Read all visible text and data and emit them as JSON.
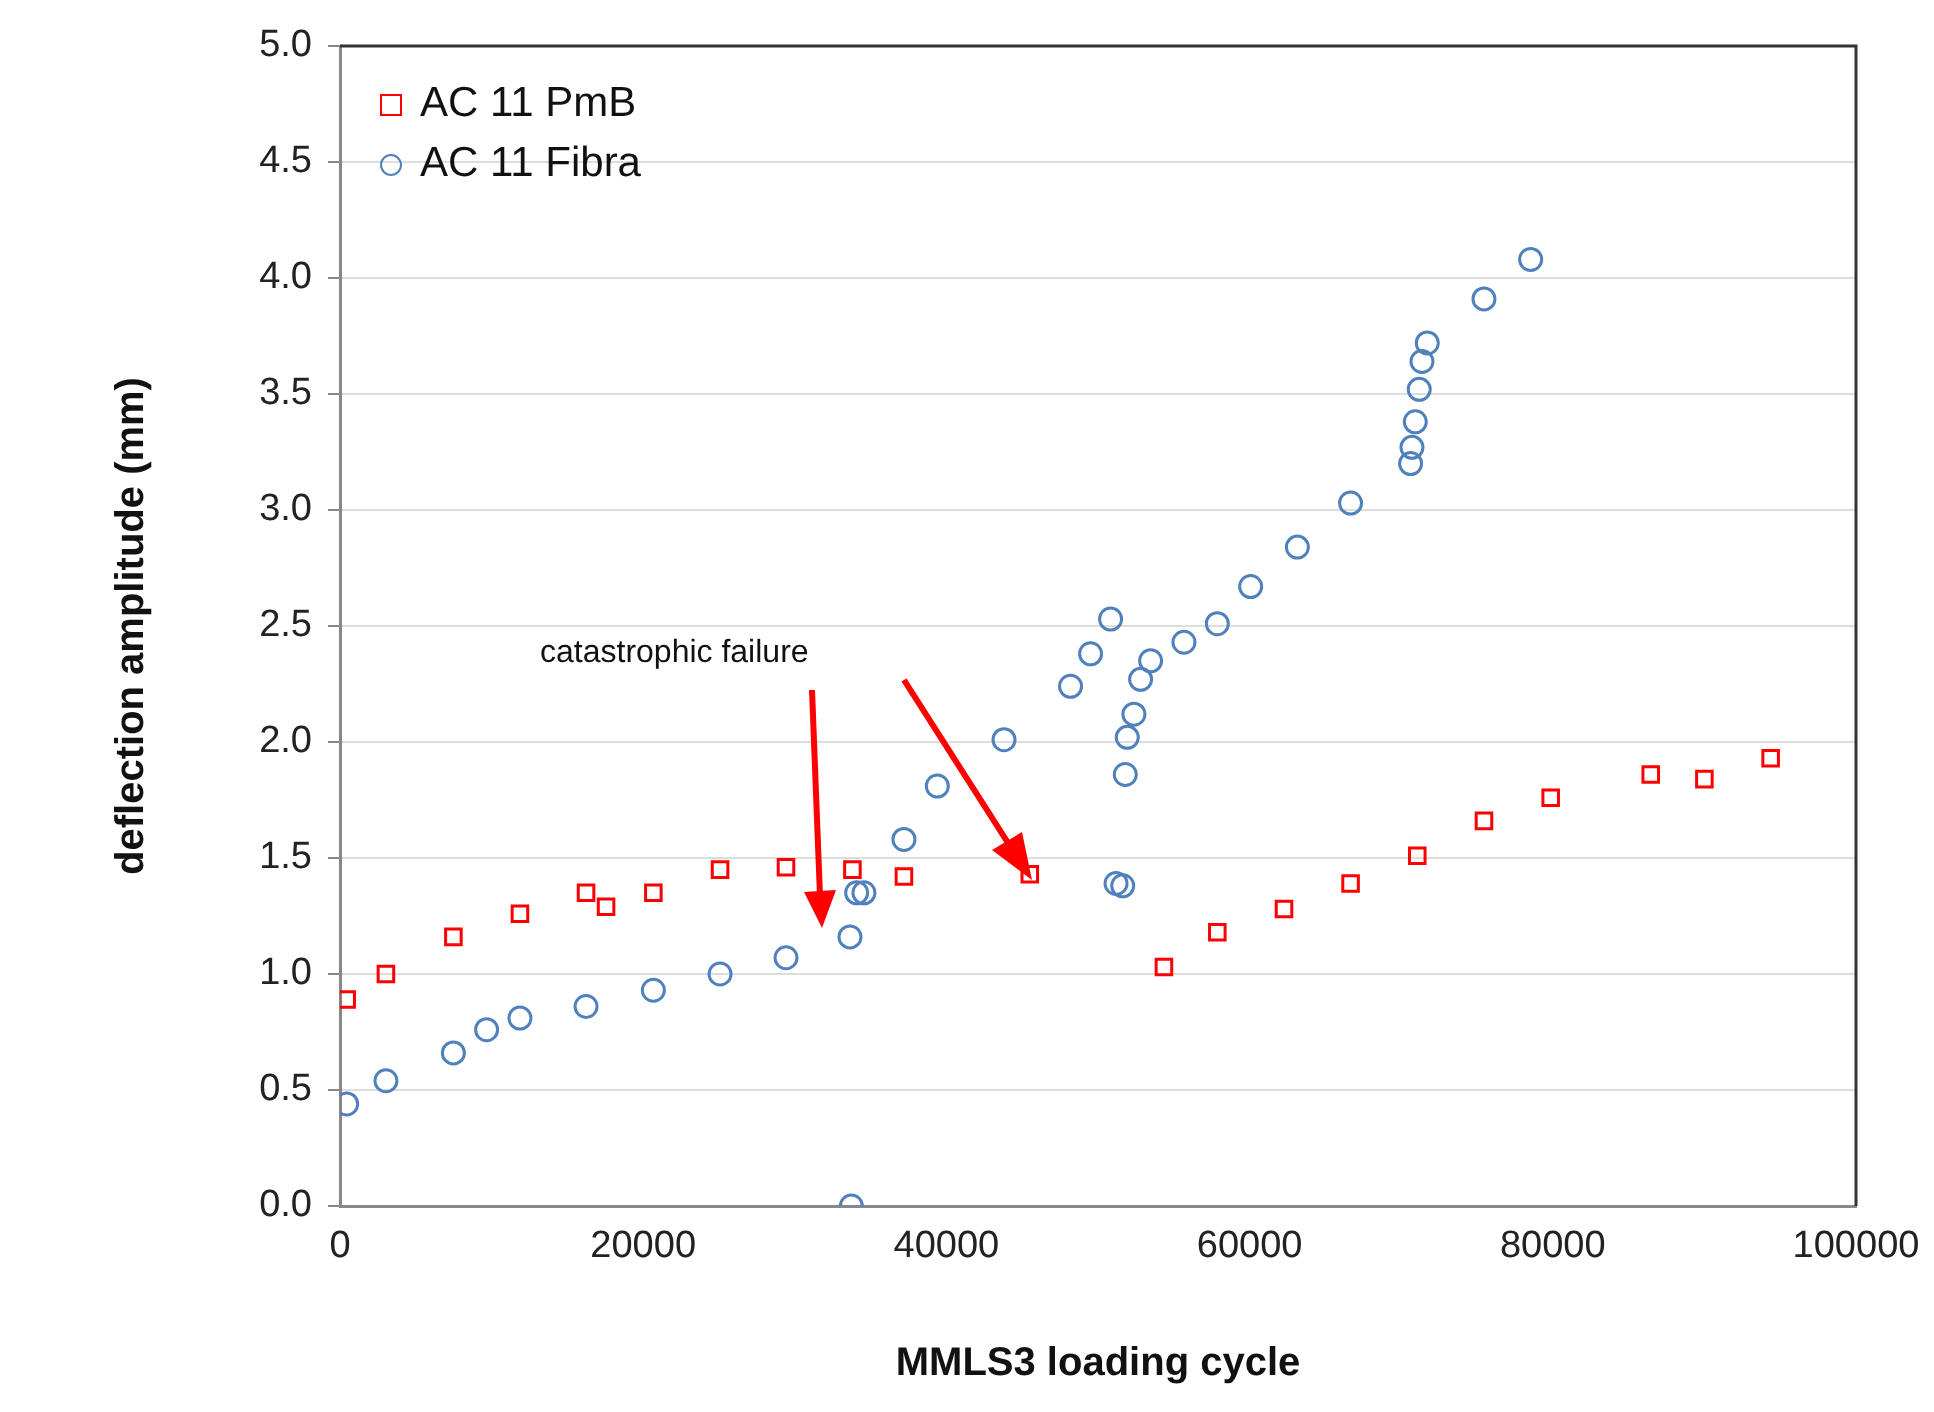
{
  "chart_data": {
    "type": "scatter",
    "xlabel": "MMLS3 loading cycle",
    "ylabel": "deflection amplitude (mm)",
    "xlim": [
      0,
      100000
    ],
    "xticks": [
      0,
      20000,
      40000,
      60000,
      80000,
      100000
    ],
    "ylim": [
      0,
      5
    ],
    "yticks": [
      {
        "value": 0,
        "label": "0.0"
      },
      {
        "value": 0.5,
        "label": "0.5"
      },
      {
        "value": 1,
        "label": "1.0"
      },
      {
        "value": 1.5,
        "label": "1.5"
      },
      {
        "value": 2,
        "label": "2.0"
      },
      {
        "value": 2.5,
        "label": "2.5"
      },
      {
        "value": 3,
        "label": "3.0"
      },
      {
        "value": 3.5,
        "label": "3.5"
      },
      {
        "value": 4,
        "label": "4.0"
      },
      {
        "value": 4.5,
        "label": "4.5"
      },
      {
        "value": 5,
        "label": "5.0"
      }
    ],
    "grid": "y",
    "legend": "top left",
    "annotations": [
      "catastrophic failure"
    ],
    "series": [
      {
        "name": "AC 11 PmB",
        "color": "#ff0000",
        "marker": "square",
        "x": [
          440,
          3030,
          7480,
          11870,
          16230,
          17550,
          20670,
          25070,
          29420,
          33800,
          37200,
          45500,
          54350,
          57870,
          62270,
          66660,
          71060,
          75460,
          79860,
          86460,
          90000,
          94370
        ],
        "values": [
          0.89,
          1.0,
          1.16,
          1.26,
          1.35,
          1.29,
          1.35,
          1.45,
          1.46,
          1.45,
          1.42,
          1.43,
          1.03,
          1.18,
          1.28,
          1.39,
          1.51,
          1.66,
          1.76,
          1.86,
          1.84,
          1.93
        ]
      },
      {
        "name": "AC 11 Fibra",
        "color": "#4f81bd",
        "marker": "circle",
        "x": [
          440,
          3030,
          7480,
          9670,
          11870,
          16230,
          20670,
          25070,
          29420,
          33640,
          33730,
          34080,
          34560,
          37200,
          39400,
          43800,
          48190,
          49510,
          50830,
          51190,
          51630,
          51800,
          51930,
          52370,
          52810,
          53470,
          55670,
          57870,
          60070,
          63150,
          66660,
          70620,
          70710,
          70930,
          71190,
          71370,
          71720,
          75460,
          78540
        ],
        "values": [
          0.44,
          0.54,
          0.66,
          0.76,
          0.81,
          0.86,
          0.93,
          1.0,
          1.07,
          1.16,
          0.0,
          1.35,
          1.35,
          1.58,
          1.81,
          2.01,
          2.24,
          2.38,
          2.53,
          1.39,
          1.38,
          1.86,
          2.02,
          2.12,
          2.27,
          2.35,
          2.43,
          2.51,
          2.67,
          2.84,
          3.03,
          3.2,
          3.27,
          3.38,
          3.52,
          3.64,
          3.72,
          3.91,
          4.08
        ]
      }
    ]
  }
}
